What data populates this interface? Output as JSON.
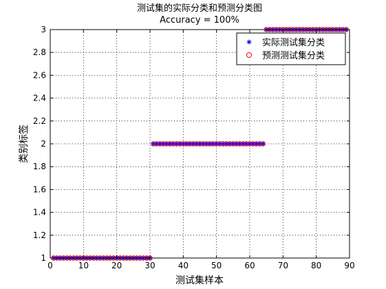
{
  "chart_data": {
    "type": "scatter",
    "title": "测试集的实际分类和预测分类图",
    "subtitle": "Accuracy = 100%",
    "xlabel": "测试集样本",
    "ylabel": "类别标签",
    "xlim": [
      0,
      90
    ],
    "ylim": [
      1,
      3
    ],
    "xticks": [
      0,
      10,
      20,
      30,
      40,
      50,
      60,
      70,
      80,
      90
    ],
    "yticks": [
      1,
      1.2,
      1.4,
      1.6,
      1.8,
      2,
      2.2,
      2.4,
      2.6,
      2.8,
      3
    ],
    "ytick_labels": [
      "1",
      "1.2",
      "1.4",
      "1.6",
      "1.8",
      "2",
      "2.2",
      "2.4",
      "2.6",
      "2.8",
      "3"
    ],
    "grid": true,
    "legend_position": "top-right",
    "segments": [
      {
        "x_start": 1,
        "x_end": 30,
        "class": 1
      },
      {
        "x_start": 31,
        "x_end": 64,
        "class": 2
      },
      {
        "x_start": 65,
        "x_end": 89,
        "class": 3
      }
    ],
    "series": [
      {
        "name": "实际测试集分类",
        "marker": "asterisk",
        "color": "#0000ff"
      },
      {
        "name": "预测测试集分类",
        "marker": "circle",
        "color": "#ff0000"
      }
    ]
  }
}
